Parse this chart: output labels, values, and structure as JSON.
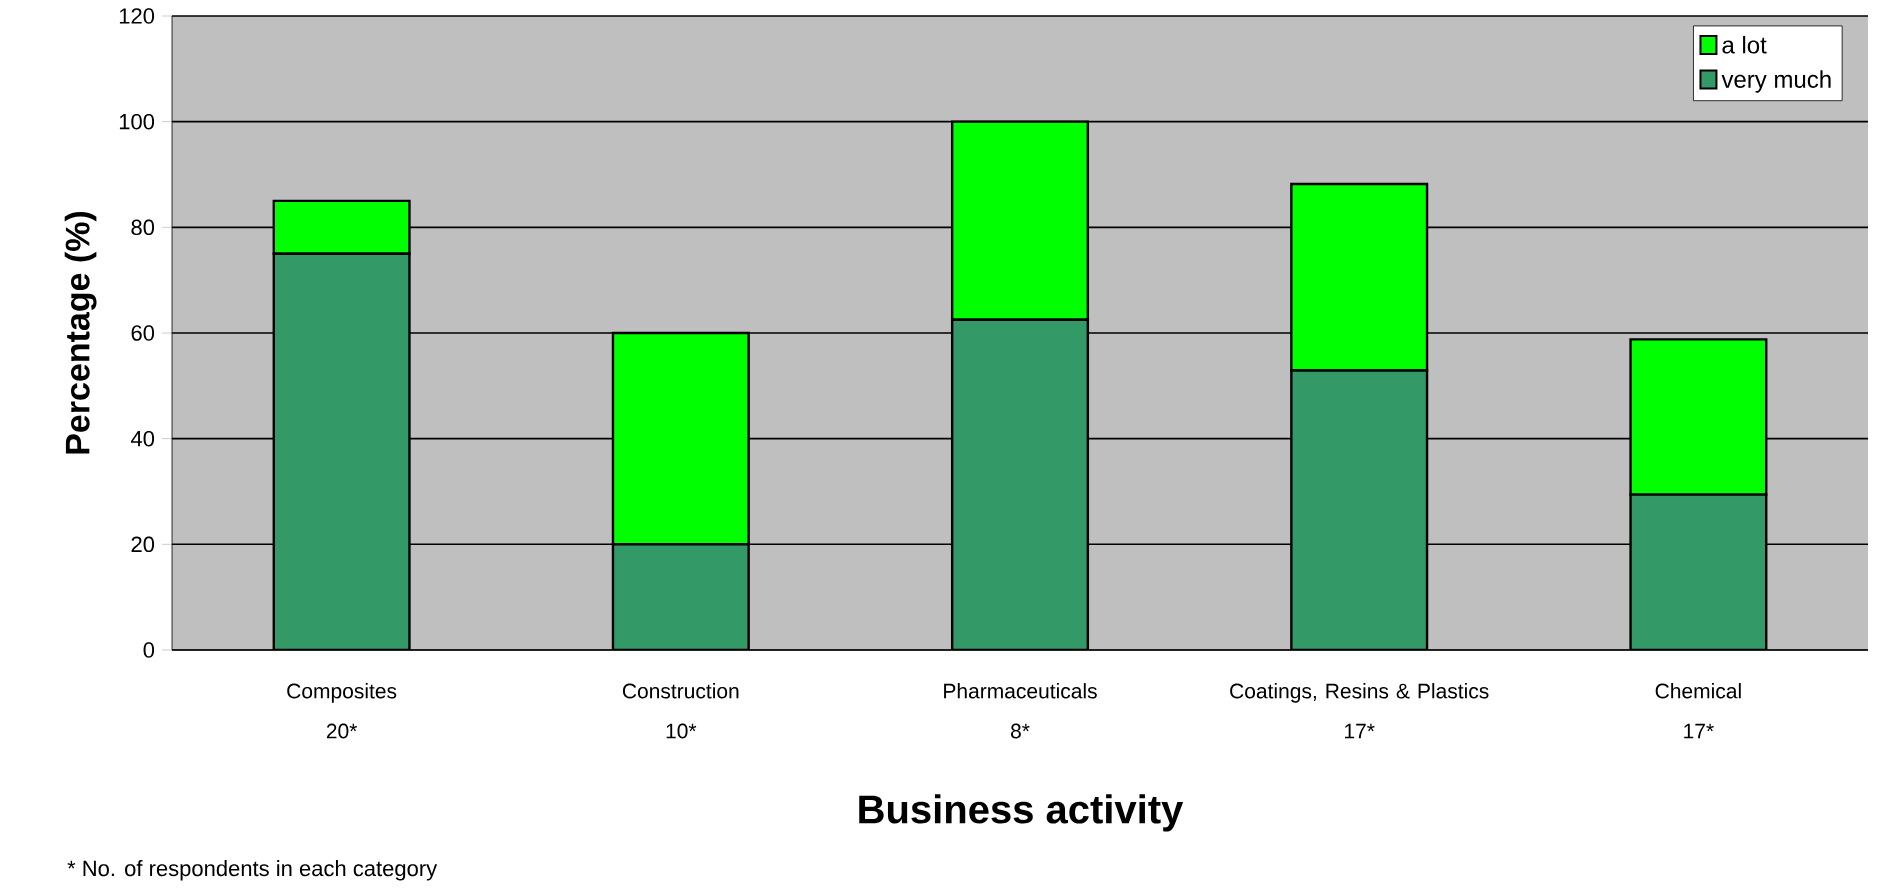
{
  "chart_data": {
    "type": "bar",
    "stacked": true,
    "xlabel": "Business activity",
    "ylabel": "Percentage (%)",
    "categories": [
      "Composites",
      "Construction",
      "Pharmaceuticals",
      "Coatings, Resins & Plastics",
      "Chemical"
    ],
    "series": [
      {
        "name": "very much",
        "color": "#339966",
        "values": [
          75,
          20,
          62.5,
          52.9,
          29.4
        ]
      },
      {
        "name": "a lot",
        "color": "#00ff00",
        "values": [
          10,
          40,
          37.5,
          35.3,
          29.4
        ]
      }
    ],
    "ylim": [
      0,
      120
    ],
    "yticks": [
      0,
      20,
      40,
      60,
      80,
      100,
      120
    ],
    "grid": "y",
    "legend": "top right",
    "annotations": [
      "20*",
      "10*",
      "8*",
      "17*",
      "17*",
      "* No. of respondents in each category"
    ]
  }
}
